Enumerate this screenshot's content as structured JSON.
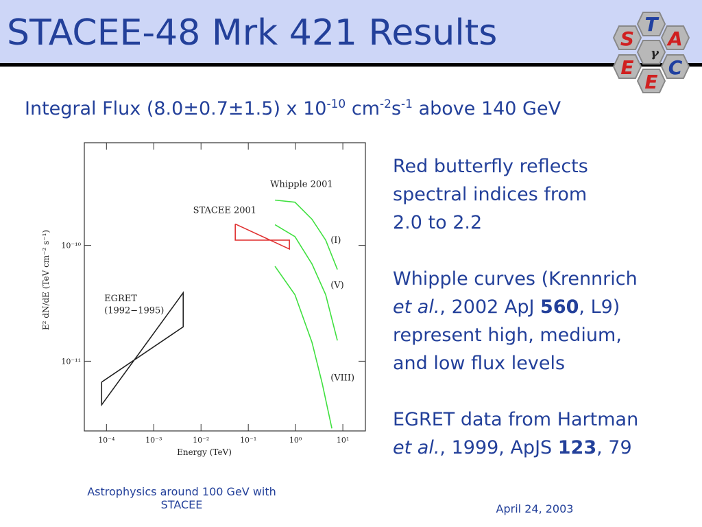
{
  "header": {
    "title": "STACEE-48 Mrk 421 Results",
    "logo": {
      "top": "T",
      "left": "S",
      "right": "A",
      "bottom_left": "E",
      "bottom_right": "C",
      "bottom": "E",
      "center": "γ"
    }
  },
  "subtitle": {
    "a": "Integral Flux (8.0±0.7±1.5) x 10",
    "sup1": "-10",
    "b": " cm",
    "sup2": "-2",
    "c": "s",
    "sup3": "-1",
    "d": " above 140 GeV"
  },
  "notes": {
    "butterfly": [
      "Red butterfly reflects",
      "spectral indices from",
      "2.0 to 2.2"
    ],
    "whipple": {
      "line1": "Whipple curves (Krennrich",
      "italic": "et al.",
      "ref": ", 2002 ApJ ",
      "bold": "560",
      "end": ", L9)",
      "line3": "represent high, medium,",
      "line4": "and low flux levels"
    },
    "egret": {
      "line1": "EGRET data from Hartman",
      "italic": "et al.",
      "ref": ", 1999, ApJS ",
      "bold": "123",
      "end": ", 79"
    }
  },
  "footer": {
    "left": "Astrophysics around 100 GeV with STACEE",
    "right": "April 24, 2003"
  },
  "chart_data": {
    "type": "line",
    "x_label": "Energy (TeV)",
    "y_label": "E² dN/dE  (TeV cm⁻² s⁻¹)",
    "x_log": true,
    "y_log": true,
    "xlim": [
      3.4e-05,
      30
    ],
    "ylim": [
      2.5e-12,
      7.7e-10
    ],
    "xticks": [
      {
        "value": 0.0001,
        "label": "10⁻⁴"
      },
      {
        "value": 0.001,
        "label": "10⁻³"
      },
      {
        "value": 0.01,
        "label": "10⁻²"
      },
      {
        "value": 0.1,
        "label": "10⁻¹"
      },
      {
        "value": 1,
        "label": "10⁰"
      },
      {
        "value": 10,
        "label": "10¹"
      }
    ],
    "yticks": [
      {
        "value": 1e-11,
        "label": "10⁻¹¹"
      },
      {
        "value": 1e-10,
        "label": "10⁻¹⁰"
      }
    ],
    "annotations": [
      {
        "text": "EGRET",
        "x": 9e-05,
        "y": 3.3e-11
      },
      {
        "text": "(1992−1995)",
        "x": 9e-05,
        "y": 2.6e-11
      },
      {
        "text": "STACEE 2001",
        "x": 0.0068,
        "y": 1.9e-10
      },
      {
        "text": "Whipple 2001",
        "x": 0.29,
        "y": 3.2e-10
      },
      {
        "text": "(I)",
        "x": 5.5,
        "y": 1.05e-10
      },
      {
        "text": "(V)",
        "x": 5.5,
        "y": 4.3e-11
      },
      {
        "text": "(VIII)",
        "x": 5.5,
        "y": 6.8e-12
      }
    ],
    "series": [
      {
        "name": "EGRET",
        "color": "#222222",
        "x": [
          7.9e-05,
          0.0042,
          0.0042,
          7.9e-05,
          7.9e-05
        ],
        "values": [
          6.6e-12,
          1.98e-11,
          3.9e-11,
          4.2e-12,
          6.6e-12
        ]
      },
      {
        "name": "STACEE 2001",
        "color": "#e03030",
        "x": [
          0.053,
          0.74,
          0.74,
          0.053,
          0.053
        ],
        "values": [
          1.53e-10,
          9.3e-11,
          1.11e-10,
          1.11e-10,
          1.53e-10
        ]
      },
      {
        "name": "(I)",
        "color": "#40e040",
        "x": [
          0.367,
          0.97,
          2.23,
          4.34,
          7.66
        ],
        "values": [
          2.46e-10,
          2.36e-10,
          1.68e-10,
          1.11e-10,
          6.2e-11
        ]
      },
      {
        "name": "(V)",
        "color": "#40e040",
        "x": [
          0.367,
          0.97,
          2.23,
          4.34,
          7.66
        ],
        "values": [
          1.51e-10,
          1.19e-10,
          6.9e-11,
          3.75e-11,
          1.51e-11
        ]
      },
      {
        "name": "(VIII)",
        "color": "#40e040",
        "x": [
          0.367,
          0.97,
          2.23,
          3.67,
          5.86
        ],
        "values": [
          6.6e-11,
          3.75e-11,
          1.45e-11,
          6.4e-12,
          2.63e-12
        ]
      }
    ]
  }
}
